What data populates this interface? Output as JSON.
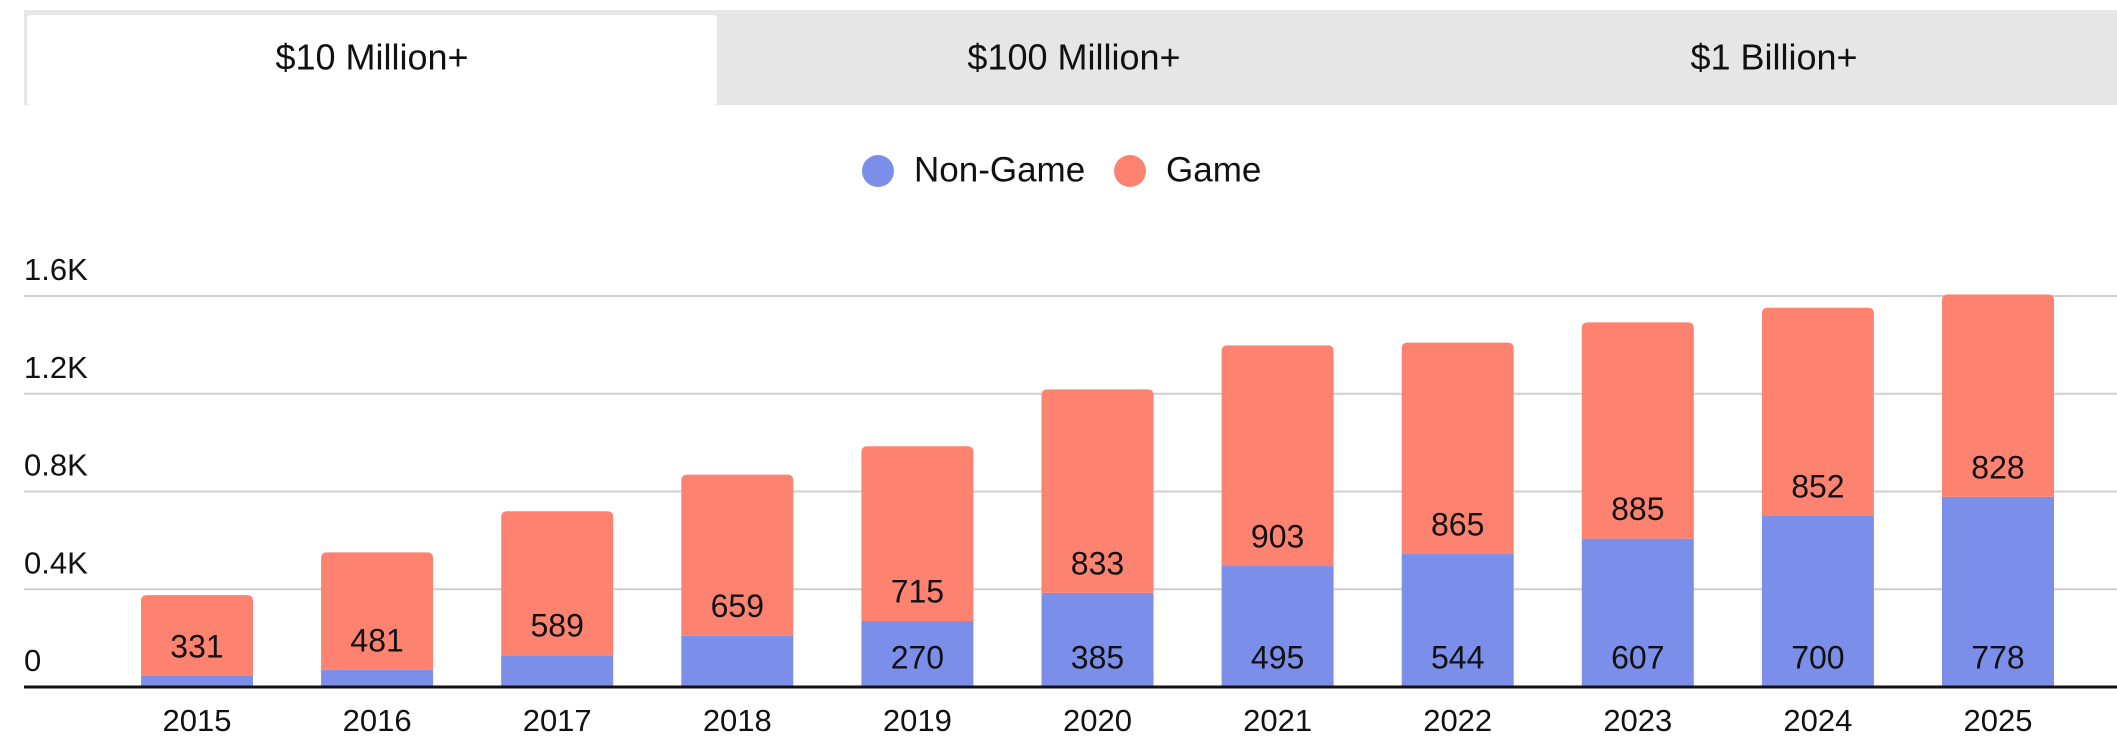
{
  "tabs": [
    "$10 Million+",
    "$100 Million+",
    "$1 Billion+"
  ],
  "active_tab": 0,
  "chart_data": {
    "type": "stacked_bar",
    "categories": [
      "2015",
      "2016",
      "2017",
      "2018",
      "2019",
      "2020",
      "2021",
      "2022",
      "2023",
      "2024",
      "2025"
    ],
    "series": [
      {
        "name": "Non-Game",
        "color": "#7b8ee9",
        "values": [
          45,
          70,
          130,
          210,
          270,
          385,
          495,
          544,
          607,
          700,
          778
        ],
        "value_labels": [
          null,
          null,
          null,
          null,
          "270",
          "385",
          "495",
          "544",
          "607",
          "700",
          "778"
        ]
      },
      {
        "name": "Game",
        "color": "#fd8270",
        "values": [
          331,
          481,
          589,
          659,
          715,
          833,
          903,
          865,
          885,
          852,
          828
        ],
        "value_labels": [
          "331",
          "481",
          "589",
          "659",
          "715",
          "833",
          "903",
          "865",
          "885",
          "852",
          "828"
        ]
      }
    ],
    "ylim": [
      0,
      1600
    ],
    "yticks": [
      0,
      {
        "value": 400,
        "label": "0.4K"
      },
      {
        "value": 800,
        "label": "0.8K"
      },
      {
        "value": 1200,
        "label": "1.2K"
      },
      {
        "value": 1600,
        "label": "1.6K"
      }
    ],
    "grid": true,
    "legend": "top"
  }
}
